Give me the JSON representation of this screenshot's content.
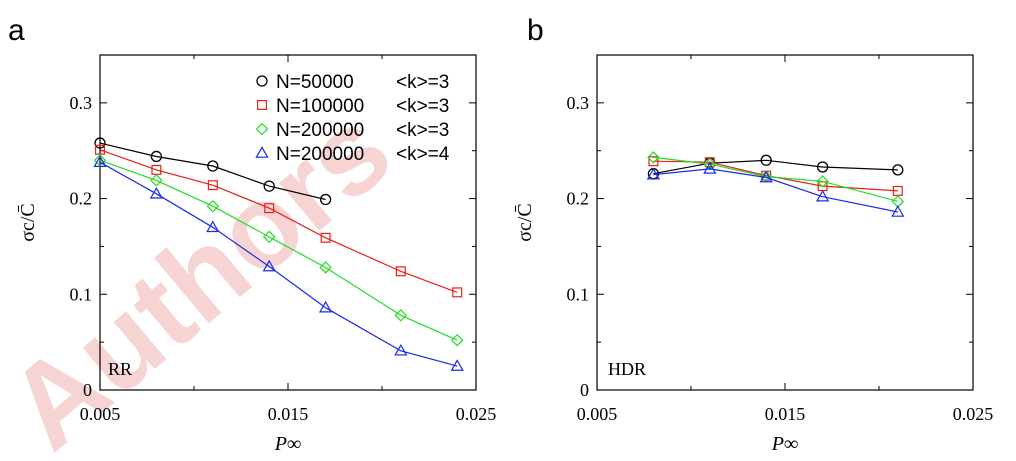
{
  "panels": [
    {
      "letter": "a",
      "inset_label": "RR"
    },
    {
      "letter": "b",
      "inset_label": "HDR"
    }
  ],
  "watermark": "Authors",
  "chart_data": [
    {
      "type": "line",
      "ylabel": "σc/C̄",
      "xlabel": "P∞",
      "xlim": [
        0.005,
        0.025
      ],
      "ylim": [
        0,
        0.35
      ],
      "xticks": [
        "0.005",
        "0.015",
        "0.025"
      ],
      "yticks": [
        "0",
        "0.1",
        "0.2",
        "0.3"
      ],
      "legend_position": "top-right",
      "series": [
        {
          "name": "N=50000",
          "k_label": "<k>=3",
          "color": "#000000",
          "marker": "circle",
          "x": [
            0.005,
            0.008,
            0.011,
            0.014,
            0.017
          ],
          "y": [
            0.258,
            0.244,
            0.234,
            0.213,
            0.199
          ]
        },
        {
          "name": "N=100000",
          "k_label": "<k>=3",
          "color": "#e8201a",
          "marker": "square",
          "x": [
            0.005,
            0.008,
            0.011,
            0.014,
            0.017,
            0.021,
            0.024
          ],
          "y": [
            0.251,
            0.23,
            0.214,
            0.19,
            0.159,
            0.124,
            0.102
          ]
        },
        {
          "name": "N=200000",
          "k_label": "<k>=3",
          "color": "#22dd22",
          "marker": "diamond",
          "x": [
            0.005,
            0.008,
            0.011,
            0.014,
            0.017,
            0.021,
            0.024
          ],
          "y": [
            0.24,
            0.219,
            0.192,
            0.16,
            0.128,
            0.078,
            0.052
          ]
        },
        {
          "name": "N=200000",
          "k_label": "<k>=4",
          "color": "#1a2ae8",
          "marker": "triangle",
          "x": [
            0.005,
            0.008,
            0.011,
            0.014,
            0.017,
            0.021,
            0.024
          ],
          "y": [
            0.238,
            0.205,
            0.17,
            0.129,
            0.086,
            0.041,
            0.025
          ]
        }
      ]
    },
    {
      "type": "line",
      "ylabel": "σc/C̄",
      "xlabel": "P∞",
      "xlim": [
        0.005,
        0.025
      ],
      "ylim": [
        0,
        0.35
      ],
      "xticks": [
        "0.005",
        "0.015",
        "0.025"
      ],
      "yticks": [
        "0",
        "0.1",
        "0.2",
        "0.3"
      ],
      "series": [
        {
          "color": "#000000",
          "marker": "circle",
          "x": [
            0.008,
            0.011,
            0.014,
            0.017,
            0.021
          ],
          "y": [
            0.226,
            0.237,
            0.24,
            0.233,
            0.23
          ]
        },
        {
          "color": "#e8201a",
          "marker": "square",
          "x": [
            0.008,
            0.011,
            0.014,
            0.017,
            0.021
          ],
          "y": [
            0.239,
            0.238,
            0.224,
            0.213,
            0.208
          ]
        },
        {
          "color": "#22dd22",
          "marker": "diamond",
          "x": [
            0.008,
            0.011,
            0.014,
            0.017,
            0.021
          ],
          "y": [
            0.243,
            0.236,
            0.223,
            0.218,
            0.197
          ]
        },
        {
          "color": "#1a2ae8",
          "marker": "triangle",
          "x": [
            0.008,
            0.011,
            0.014,
            0.017,
            0.021
          ],
          "y": [
            0.225,
            0.231,
            0.222,
            0.202,
            0.186
          ]
        }
      ]
    }
  ]
}
